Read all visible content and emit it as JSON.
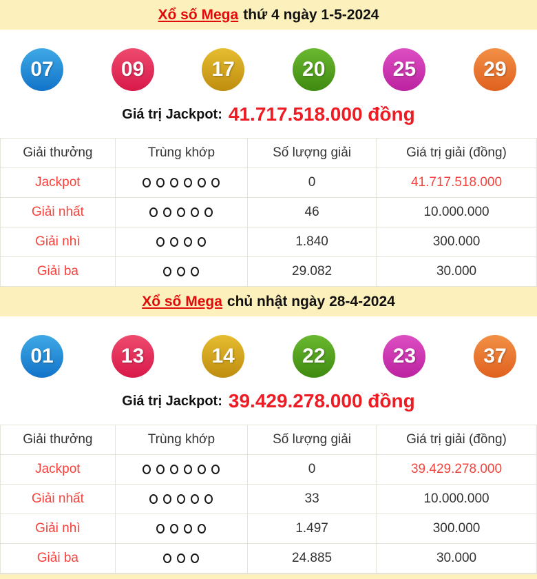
{
  "palette": {
    "header_bg": "#fcf0bc",
    "title_red": "#e10b0b",
    "jackpot_red": "#ed1c24",
    "table_red": "#f4433c",
    "border": "#e6e3da",
    "ball_blue": "#1273c8",
    "ball_crimson": "#d8194a",
    "ball_gold": "#bf8d0e",
    "ball_green": "#3f8a10",
    "ball_magenta": "#bc22a0",
    "ball_orange": "#e0611f"
  },
  "sections": [
    {
      "title_link": "Xổ số Mega",
      "title_rest": "thứ 4 ngày 1-5-2024",
      "balls": [
        {
          "value": "07",
          "color": "blue"
        },
        {
          "value": "09",
          "color": "crimson"
        },
        {
          "value": "17",
          "color": "gold"
        },
        {
          "value": "20",
          "color": "green"
        },
        {
          "value": "25",
          "color": "magenta"
        },
        {
          "value": "29",
          "color": "orange"
        }
      ],
      "jackpot_label": "Giá trị Jackpot:",
      "jackpot_value": "41.717.518.000 đồng",
      "table": {
        "headers": [
          "Giải thưởng",
          "Trùng khớp",
          "Số lượng giải",
          "Giá trị giải (đồng)"
        ],
        "rows": [
          {
            "name": "Jackpot",
            "match": 6,
            "count": "0",
            "value": "41.717.518.000",
            "value_red": true
          },
          {
            "name": "Giải nhất",
            "match": 5,
            "count": "46",
            "value": "10.000.000",
            "value_red": false
          },
          {
            "name": "Giải nhì",
            "match": 4,
            "count": "1.840",
            "value": "300.000",
            "value_red": false
          },
          {
            "name": "Giải ba",
            "match": 3,
            "count": "29.082",
            "value": "30.000",
            "value_red": false
          }
        ]
      }
    },
    {
      "title_link": "Xổ số Mega",
      "title_rest": "chủ nhật ngày 28-4-2024",
      "balls": [
        {
          "value": "01",
          "color": "blue"
        },
        {
          "value": "13",
          "color": "crimson"
        },
        {
          "value": "14",
          "color": "gold"
        },
        {
          "value": "22",
          "color": "green"
        },
        {
          "value": "23",
          "color": "magenta"
        },
        {
          "value": "37",
          "color": "orange"
        }
      ],
      "jackpot_label": "Giá trị Jackpot:",
      "jackpot_value": "39.429.278.000 đồng",
      "table": {
        "headers": [
          "Giải thưởng",
          "Trùng khớp",
          "Số lượng giải",
          "Giá trị giải (đồng)"
        ],
        "rows": [
          {
            "name": "Jackpot",
            "match": 6,
            "count": "0",
            "value": "39.429.278.000",
            "value_red": true
          },
          {
            "name": "Giải nhất",
            "match": 5,
            "count": "33",
            "value": "10.000.000",
            "value_red": false
          },
          {
            "name": "Giải nhì",
            "match": 4,
            "count": "1.497",
            "value": "300.000",
            "value_red": false
          },
          {
            "name": "Giải ba",
            "match": 3,
            "count": "24.885",
            "value": "30.000",
            "value_red": false
          }
        ]
      }
    }
  ]
}
